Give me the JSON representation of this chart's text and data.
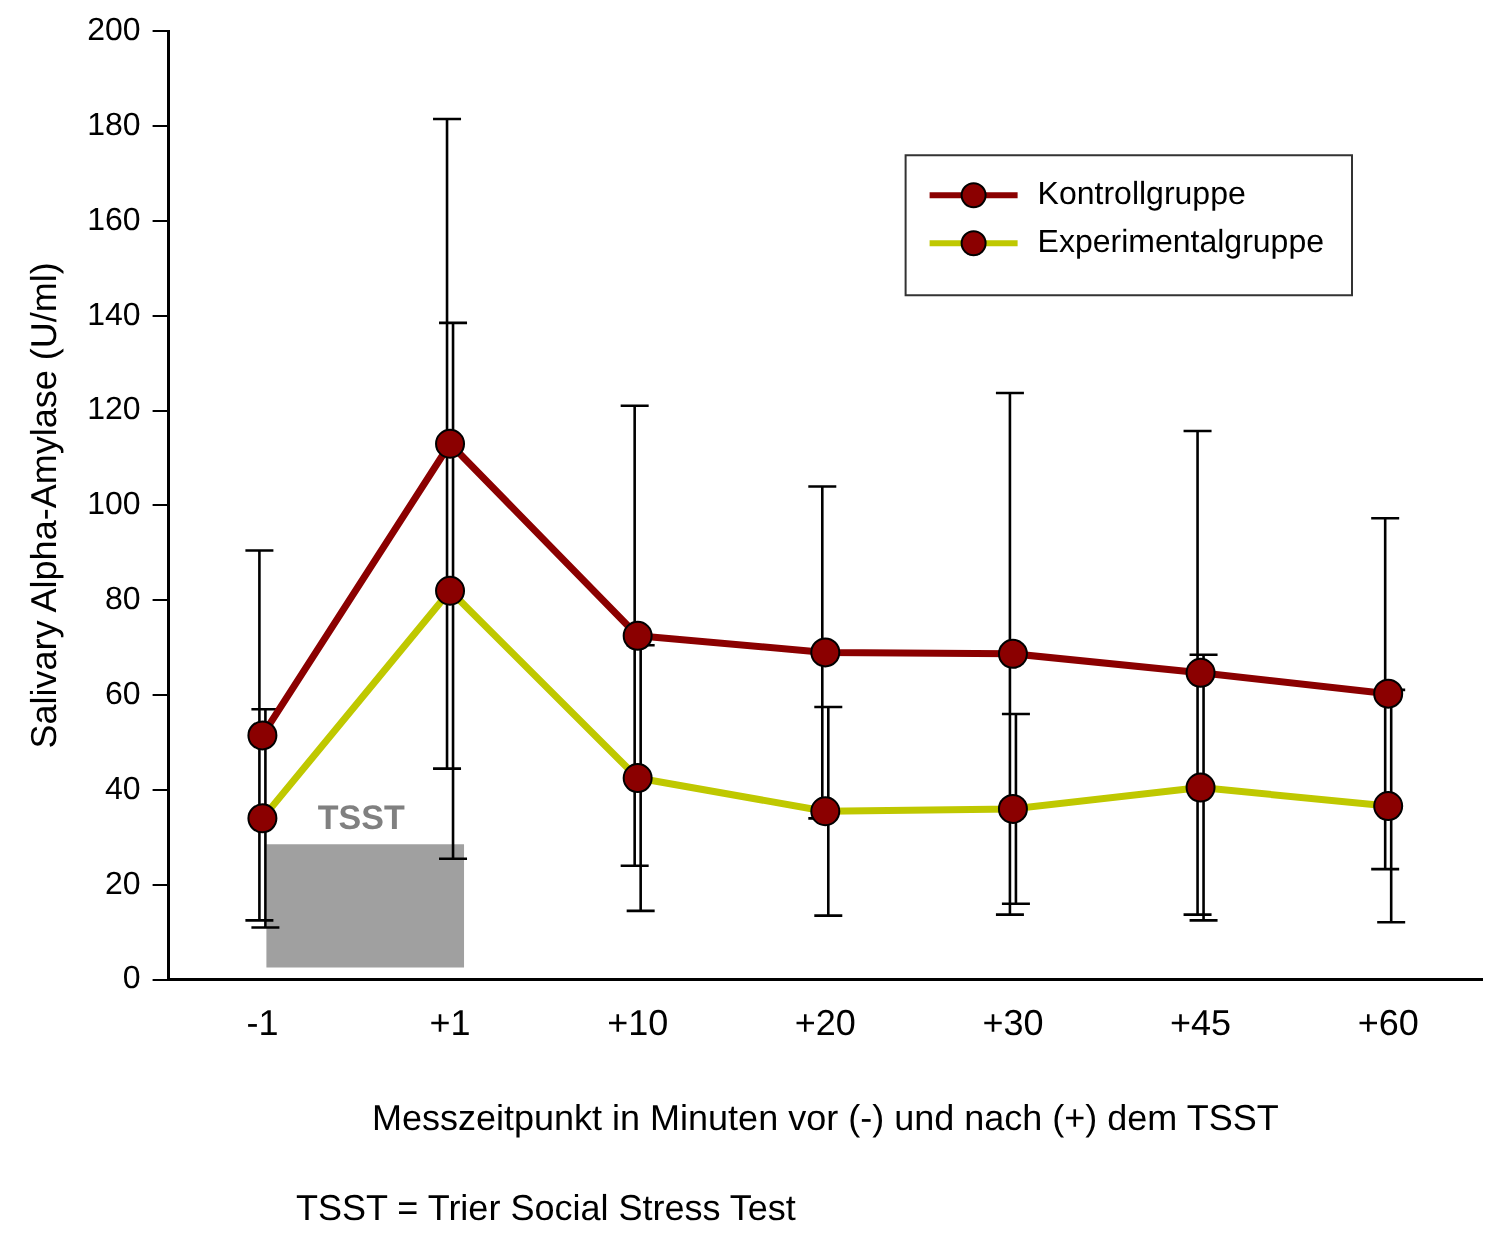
{
  "chart_data": {
    "type": "line",
    "categories": [
      "-1",
      "+1",
      "+10",
      "+20",
      "+30",
      "+45",
      "+60"
    ],
    "series": [
      {
        "name": "Kontrollgruppe",
        "color": "#8b0000",
        "values": [
          51.5,
          113,
          72.5,
          69,
          68.7,
          64.7,
          60.3
        ],
        "errors": [
          39,
          68.5,
          48.5,
          35,
          55,
          51,
          37
        ]
      },
      {
        "name": "Experimentalgruppe",
        "color": "#bfc800",
        "values": [
          34,
          82,
          42.5,
          35.5,
          36,
          40.5,
          36.6
        ],
        "errors": [
          23,
          56.5,
          28,
          22,
          20,
          28,
          24.5
        ]
      }
    ],
    "ylabel": "Salivary Alpha-Amylase (U/ml)",
    "xlabel": "Messzeitpunkt in Minuten vor (-) und nach (+) dem TSST",
    "annotations": [
      "TSST = Trier Social Stress Test"
    ],
    "bands": [
      {
        "axis": "x",
        "from": "-1",
        "to": "+1",
        "label": "TSST",
        "color": "#a0a0a0"
      }
    ],
    "ylim": [
      0,
      200
    ],
    "yticks": [
      0,
      20,
      40,
      60,
      80,
      100,
      120,
      140,
      160,
      180,
      200
    ],
    "grid": false,
    "legend": "top right",
    "marker": "circle",
    "line_style": "solid"
  }
}
